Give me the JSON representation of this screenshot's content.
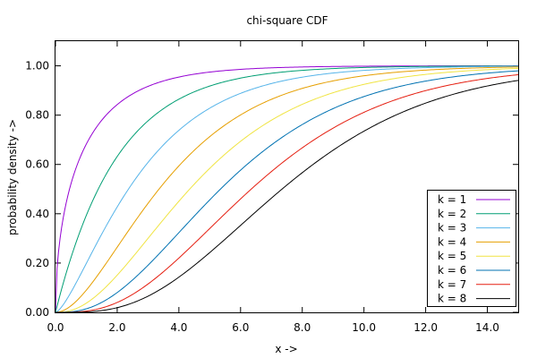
{
  "chart_data": {
    "type": "line",
    "title": "chi-square CDF",
    "xlabel": "x ->",
    "ylabel": "probability density ->",
    "xlim": [
      0,
      15
    ],
    "ylim": [
      0,
      1.1
    ],
    "x_ticks": [
      "0.0",
      "2.0",
      "4.0",
      "6.0",
      "8.0",
      "10.0",
      "12.0",
      "14.0"
    ],
    "y_ticks": [
      "0.00",
      "0.20",
      "0.40",
      "0.60",
      "0.80",
      "1.00"
    ],
    "grid": false,
    "legend_position": "bottom-right",
    "x": [
      0,
      1,
      2,
      3,
      4,
      5,
      6,
      7,
      8,
      9,
      10,
      11,
      12,
      13,
      14,
      15
    ],
    "series": [
      {
        "name": "k = 1",
        "color": "#9400d3",
        "k": 1,
        "values": [
          0.0,
          0.68,
          0.84,
          0.92,
          0.95,
          0.97,
          0.99,
          0.99,
          1.0,
          1.0,
          1.0,
          1.0,
          1.0,
          1.0,
          1.0,
          1.0
        ]
      },
      {
        "name": "k = 2",
        "color": "#009e73",
        "k": 2,
        "values": [
          0.0,
          0.39,
          0.63,
          0.78,
          0.86,
          0.92,
          0.95,
          0.97,
          0.98,
          0.99,
          0.99,
          1.0,
          1.0,
          1.0,
          1.0,
          1.0
        ]
      },
      {
        "name": "k = 3",
        "color": "#56b4e9",
        "k": 3,
        "values": [
          0.0,
          0.2,
          0.43,
          0.61,
          0.74,
          0.83,
          0.89,
          0.93,
          0.95,
          0.97,
          0.98,
          0.99,
          0.99,
          1.0,
          1.0,
          1.0
        ]
      },
      {
        "name": "k = 4",
        "color": "#e69f00",
        "k": 4,
        "values": [
          0.0,
          0.09,
          0.26,
          0.44,
          0.59,
          0.71,
          0.8,
          0.86,
          0.91,
          0.94,
          0.96,
          0.97,
          0.98,
          0.99,
          0.99,
          1.0
        ]
      },
      {
        "name": "k = 5",
        "color": "#f0e442",
        "k": 5,
        "values": [
          0.0,
          0.04,
          0.15,
          0.3,
          0.45,
          0.58,
          0.69,
          0.78,
          0.84,
          0.89,
          0.92,
          0.95,
          0.97,
          0.98,
          0.98,
          0.99
        ]
      },
      {
        "name": "k = 6",
        "color": "#0072b2",
        "k": 6,
        "values": [
          0.0,
          0.01,
          0.08,
          0.19,
          0.32,
          0.46,
          0.58,
          0.68,
          0.76,
          0.83,
          0.88,
          0.91,
          0.94,
          0.96,
          0.97,
          0.98
        ]
      },
      {
        "name": "k = 7",
        "color": "#e51e10",
        "k": 7,
        "values": [
          0.0,
          0.01,
          0.04,
          0.11,
          0.22,
          0.34,
          0.46,
          0.57,
          0.67,
          0.75,
          0.81,
          0.86,
          0.9,
          0.93,
          0.95,
          0.96
        ]
      },
      {
        "name": "k = 8",
        "color": "#000000",
        "k": 8,
        "values": [
          0.0,
          0.0,
          0.02,
          0.07,
          0.14,
          0.24,
          0.35,
          0.46,
          0.57,
          0.66,
          0.73,
          0.8,
          0.85,
          0.89,
          0.92,
          0.94
        ]
      }
    ]
  }
}
